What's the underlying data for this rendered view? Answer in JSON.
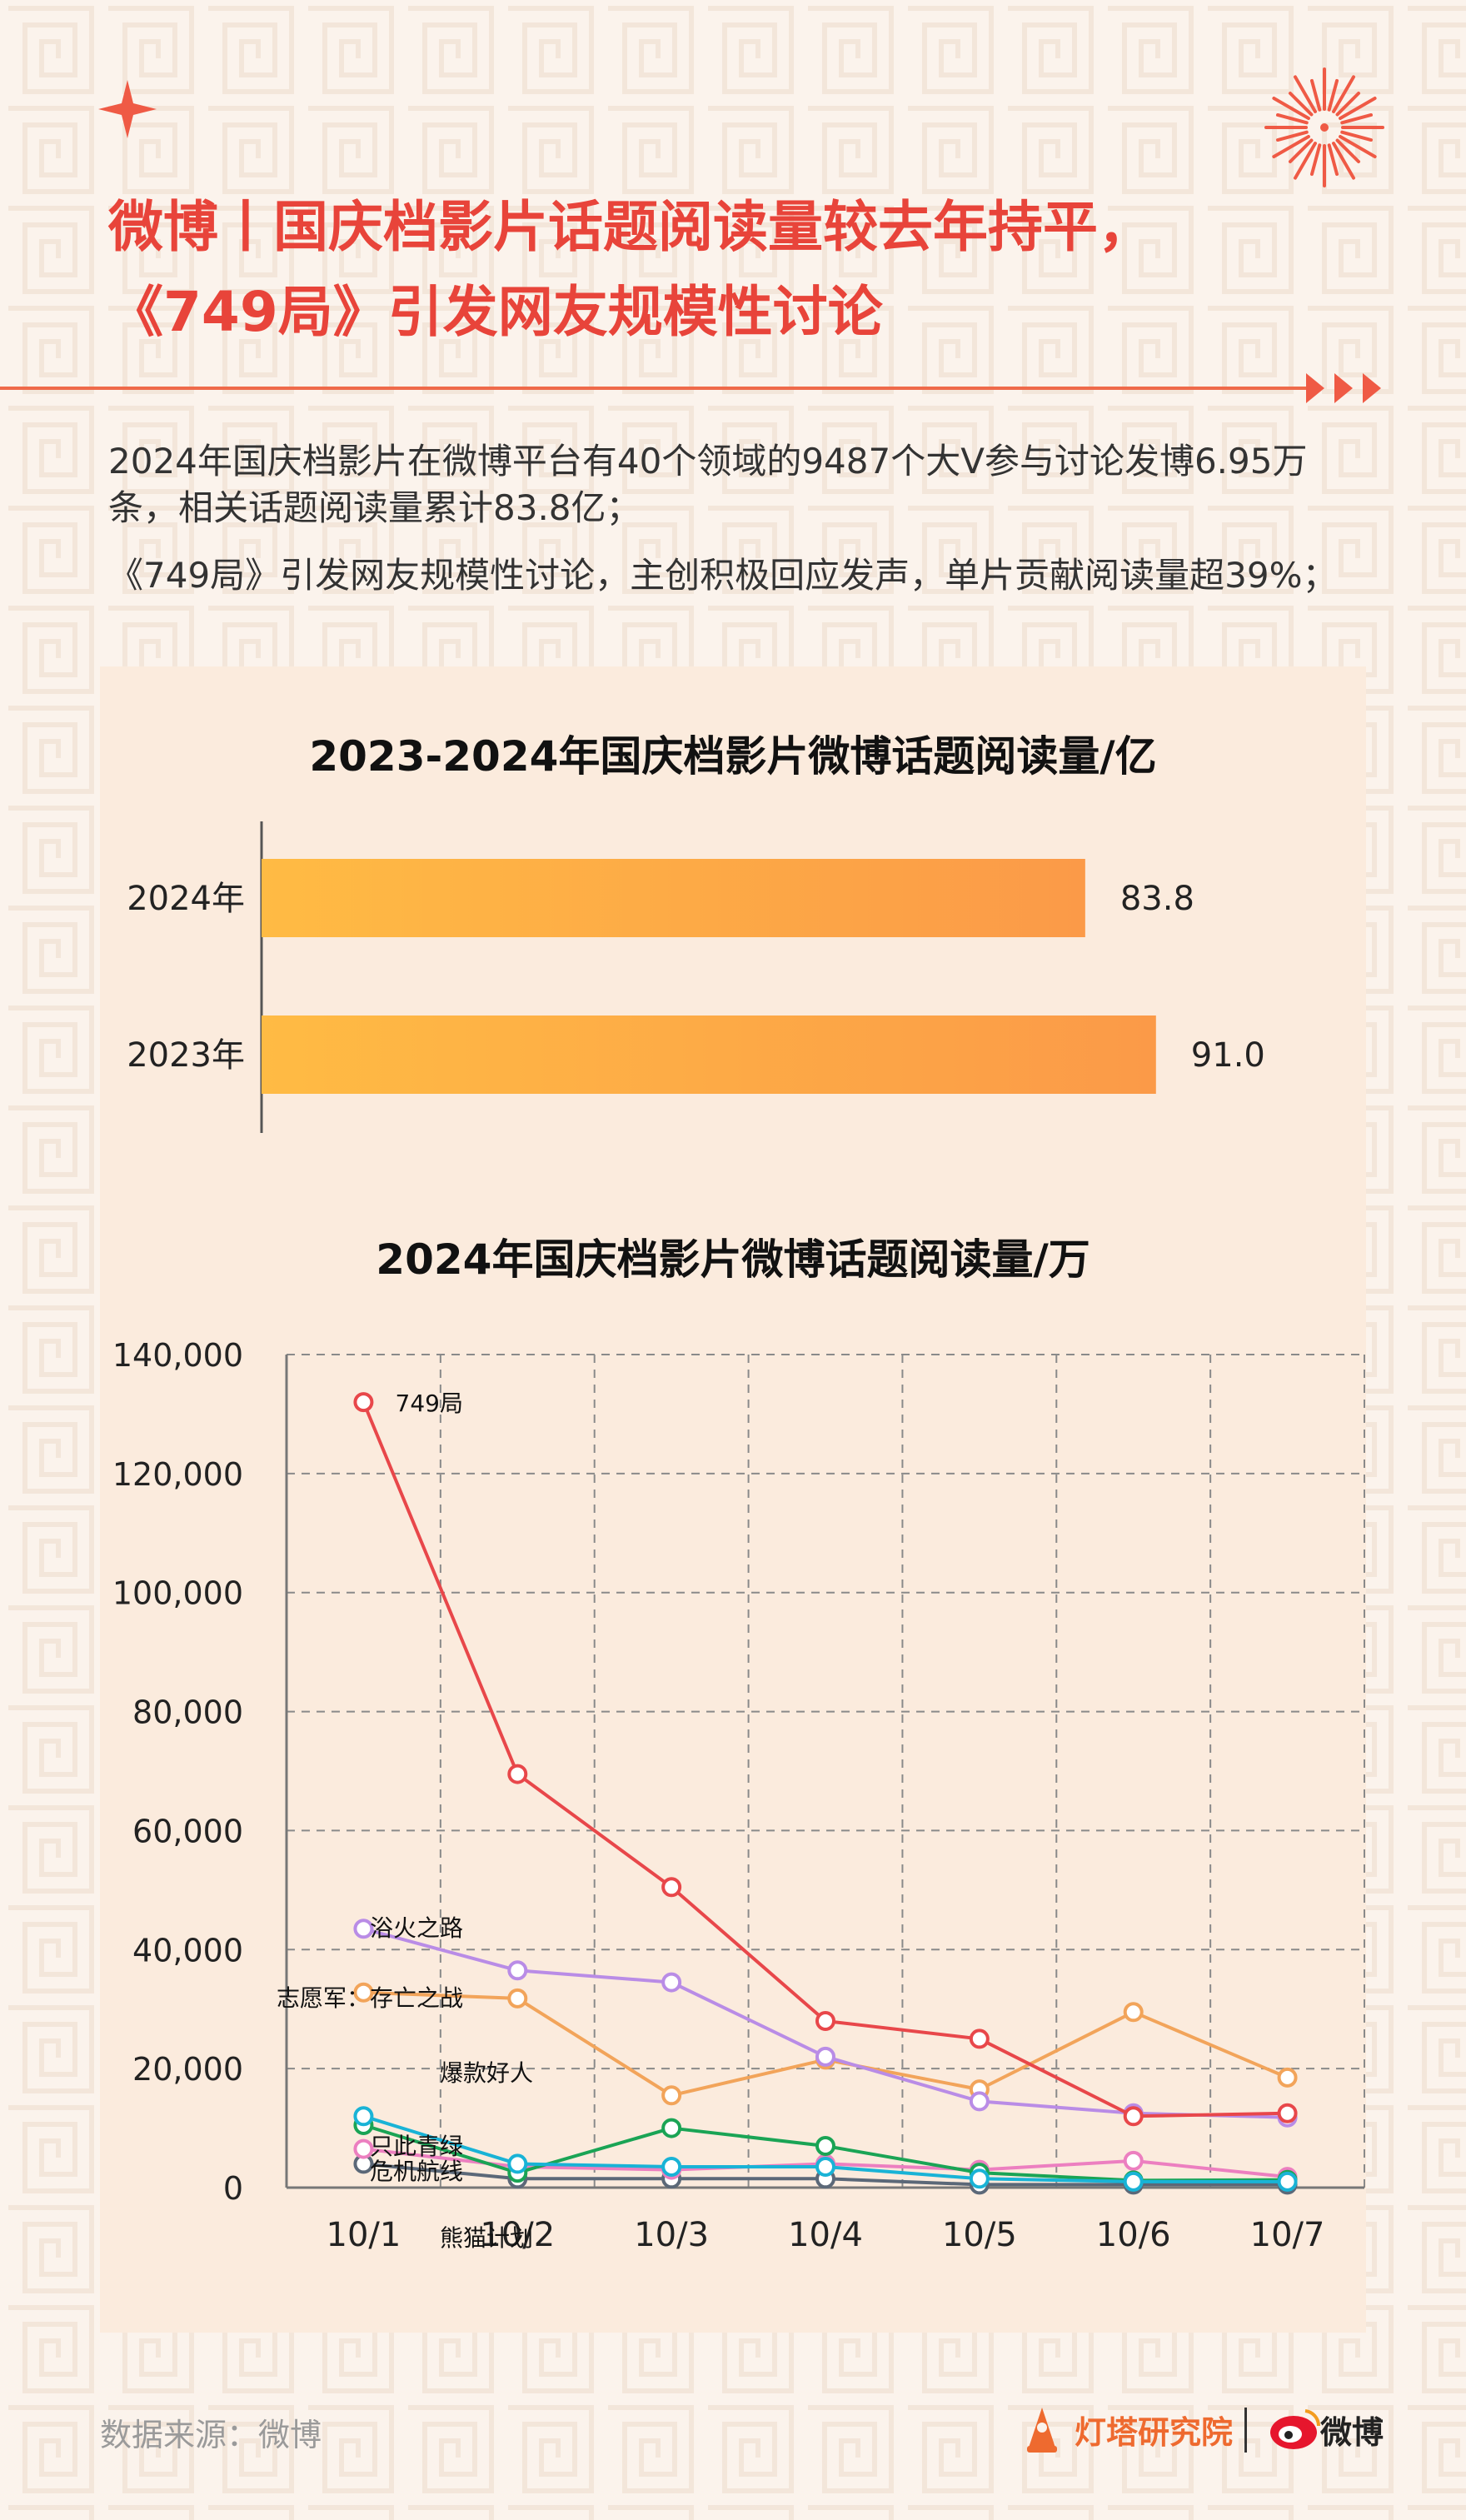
{
  "header": {
    "title_line1": "微博丨国庆档影片话题阅读量较去年持平，",
    "title_line2": "《749局》引发网友规模性讨论"
  },
  "summary": {
    "paragraph1": "2024年国庆档影片在微博平台有40个领域的9487个大V参与讨论发博6.95万条，相关话题阅读量累计83.8亿；",
    "paragraph2": "《749局》引发网友规模性讨论，主创积极回应发声，单片贡献阅读量超39%；"
  },
  "colors": {
    "title_red": "#e8443a",
    "accent_orange": "#ef6a4a",
    "bar_gold_light": "#ffbb44",
    "bar_gold_dark": "#fb9a48",
    "panel_bg": "#fbebdd"
  },
  "footer": {
    "source": "数据来源：微博",
    "logo_dengta": "灯塔研究院",
    "logo_weibo": "微博"
  },
  "chart_data": [
    {
      "type": "bar",
      "orientation": "horizontal",
      "title": "2023-2024年国庆档影片微博话题阅读量/亿",
      "categories": [
        "2024年",
        "2023年"
      ],
      "values": [
        83.8,
        91.0
      ],
      "value_labels": [
        "83.8",
        "91.0"
      ],
      "xlim": [
        0,
        100
      ]
    },
    {
      "type": "line",
      "title": "2024年国庆档影片微博话题阅读量/万",
      "x": [
        "10/1",
        "10/2",
        "10/3",
        "10/4",
        "10/5",
        "10/6",
        "10/7"
      ],
      "ylim": [
        0,
        140000
      ],
      "yticks": [
        0,
        20000,
        40000,
        60000,
        80000,
        100000,
        120000,
        140000
      ],
      "ytick_labels": [
        "0",
        "20,000",
        "40,000",
        "60,000",
        "80,000",
        "100,000",
        "120,000",
        "140,000"
      ],
      "grid": true,
      "grid_style": "dashed",
      "series": [
        {
          "name": "749局",
          "color": "#e8474a",
          "values": [
            132000,
            69500,
            50500,
            28000,
            25000,
            12000,
            12500
          ]
        },
        {
          "name": "浴火之路",
          "color": "#b98ce6",
          "values": [
            43500,
            36500,
            34500,
            22000,
            14500,
            12500,
            11800
          ]
        },
        {
          "name": "志愿军：存亡之战",
          "color": "#f2a45a",
          "values": [
            32800,
            31800,
            15500,
            21500,
            16500,
            29500,
            18500
          ]
        },
        {
          "name": "只此青绿",
          "color": "#19b3d6",
          "values": [
            12000,
            4000,
            3500,
            3500,
            1500,
            1000,
            1000
          ]
        },
        {
          "name": "爆款好人",
          "color": "#1aa455",
          "values": [
            10500,
            2500,
            10000,
            7000,
            2500,
            1200,
            1300
          ]
        },
        {
          "name": "危机航线",
          "color": "#ec7fc0",
          "values": [
            6500,
            3500,
            3000,
            4000,
            3000,
            4500,
            1800
          ]
        },
        {
          "name": "熊猫计划",
          "color": "#5b6878",
          "values": [
            4000,
            1500,
            1500,
            1500,
            500,
            500,
            500
          ]
        }
      ]
    }
  ]
}
